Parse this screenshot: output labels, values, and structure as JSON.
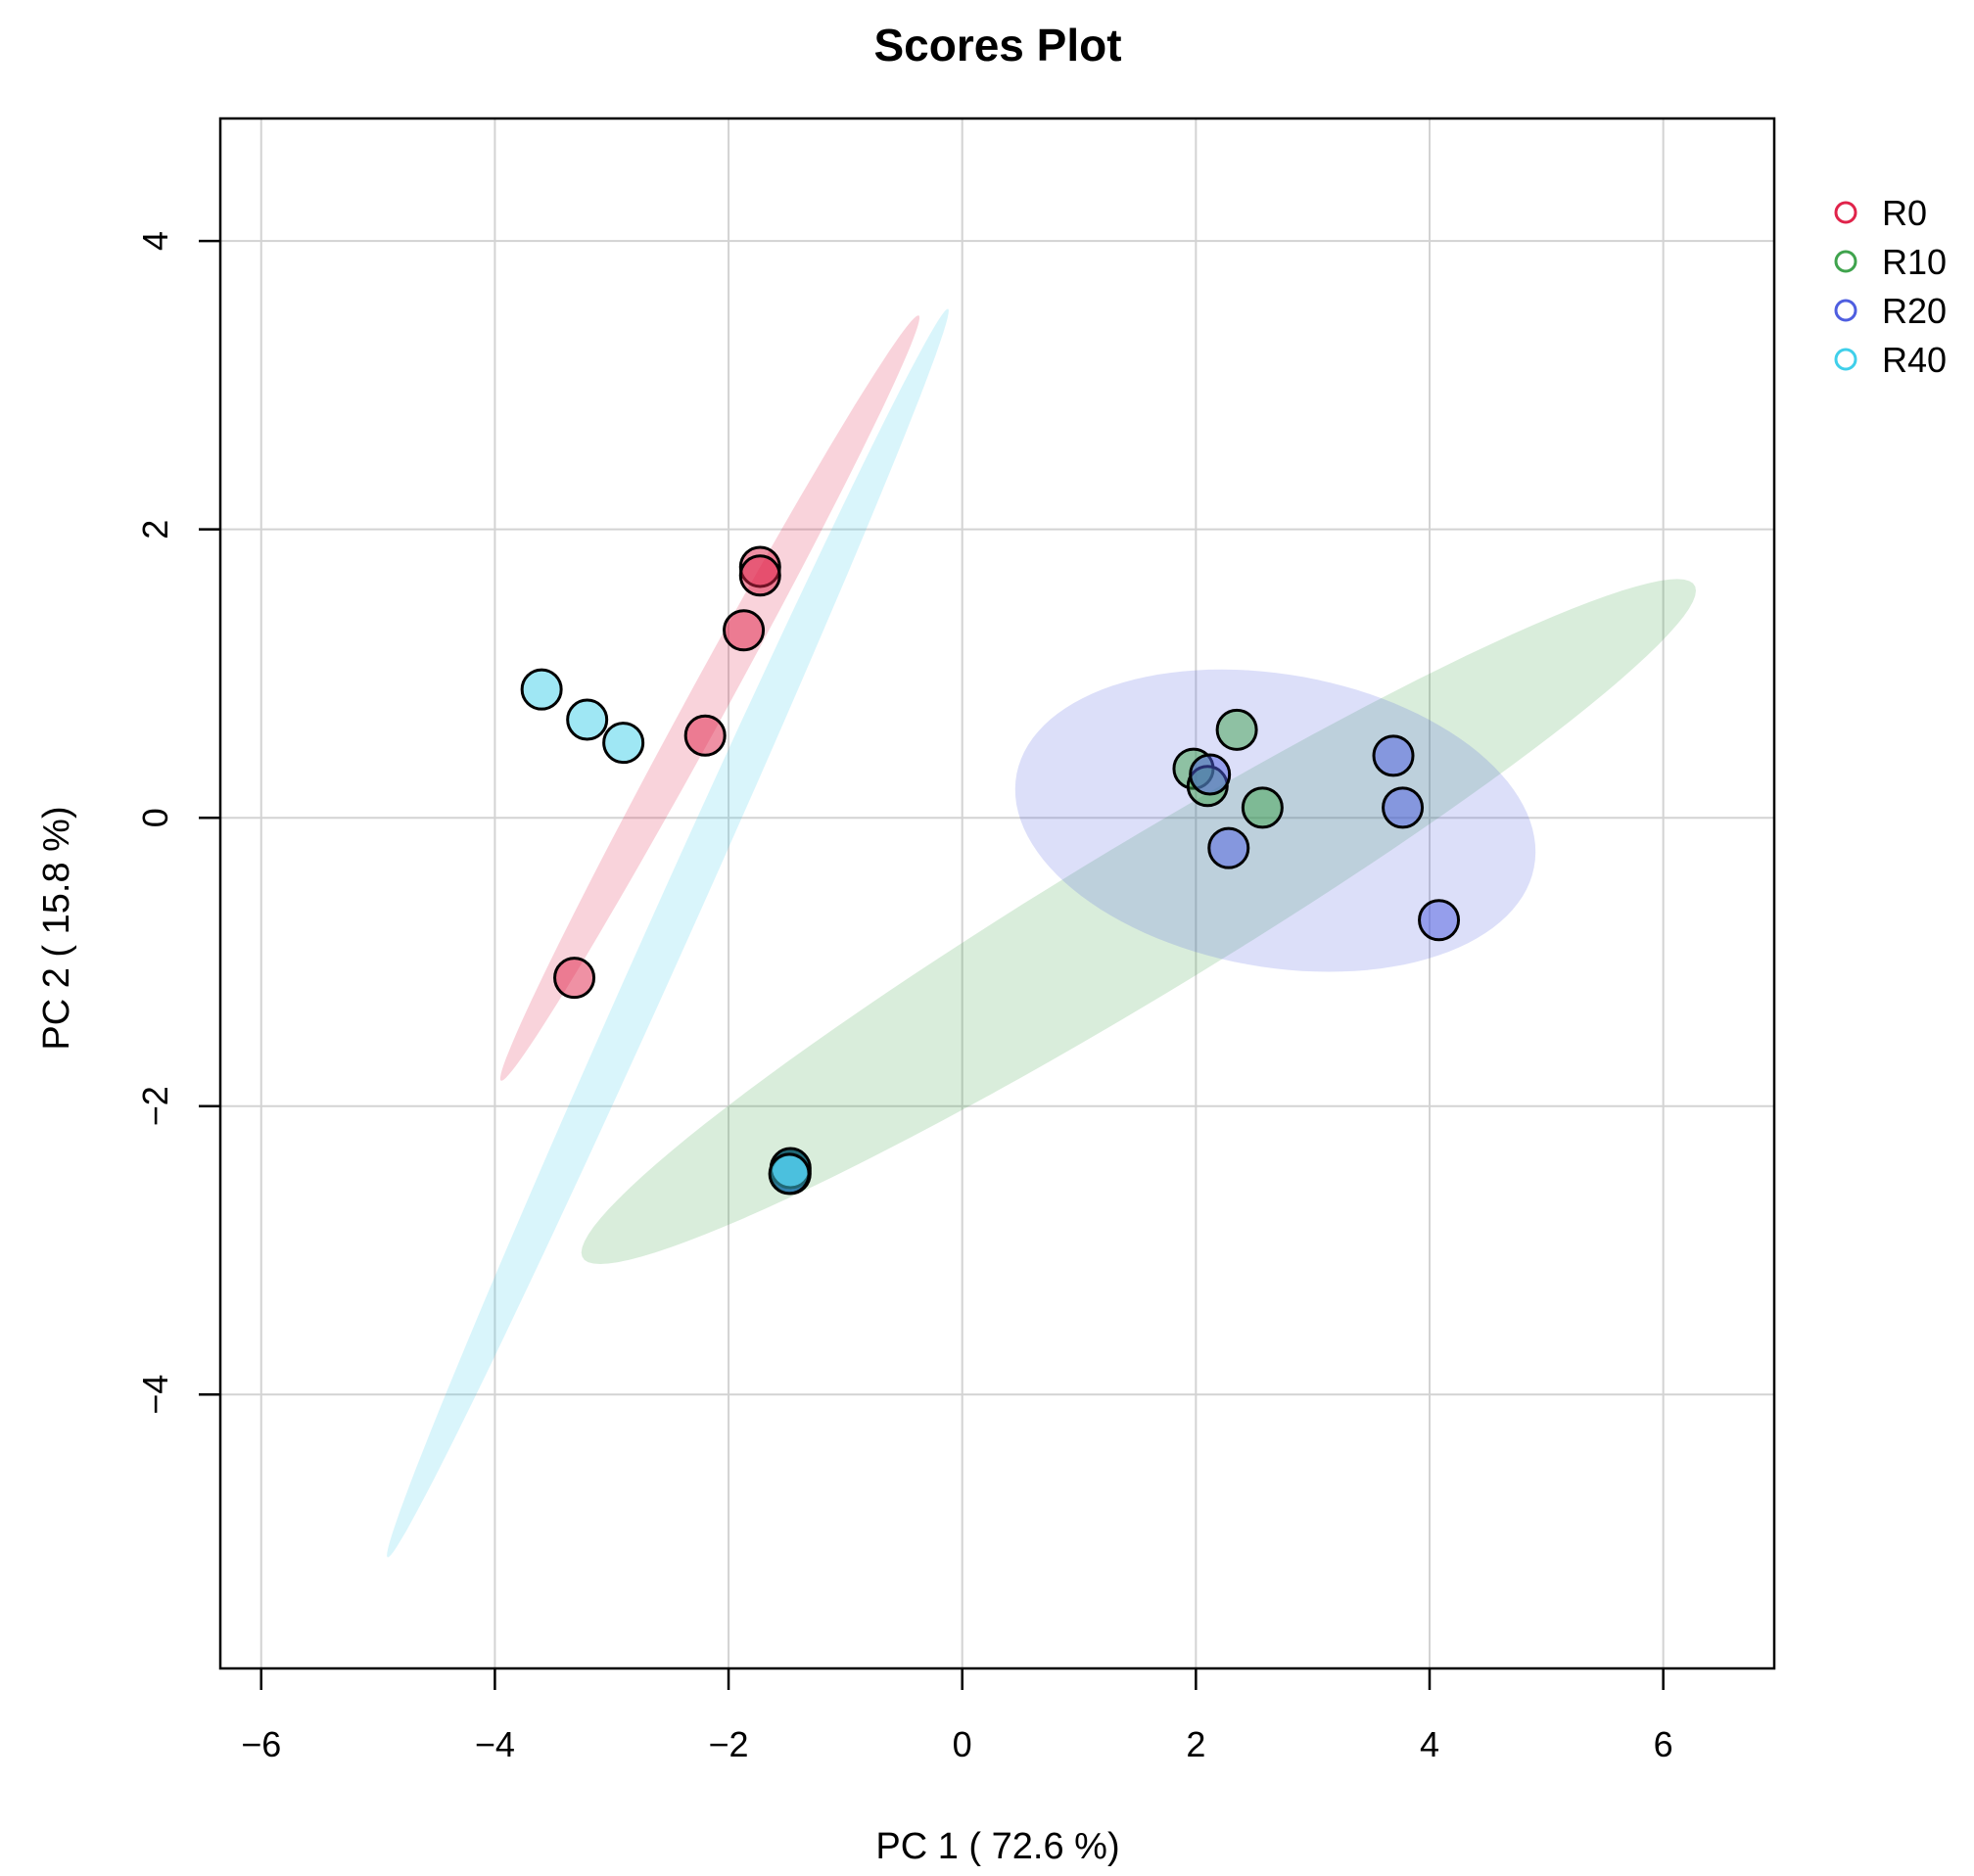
{
  "chart_data": {
    "type": "scatter",
    "title": "Scores Plot",
    "xlabel": "PC 1 ( 72.6 %)",
    "ylabel": "PC 2 ( 15.8 %)",
    "xlim": [
      -6.35,
      6.95
    ],
    "ylim": [
      -5.9,
      4.85
    ],
    "x_ticks": [
      -6,
      -4,
      -2,
      0,
      2,
      4,
      6
    ],
    "y_ticks": [
      -4,
      -2,
      0,
      2,
      4
    ],
    "x_tick_labels": [
      "−6",
      "−4",
      "−2",
      "0",
      "2",
      "4",
      "6"
    ],
    "y_tick_labels": [
      "−4",
      "−2",
      "0",
      "2",
      "4"
    ],
    "grid": true,
    "legend_position": "right-outside",
    "series": [
      {
        "name": "R0",
        "color": "#e0234a",
        "points": [
          [
            -1.73,
            1.74
          ],
          [
            -1.73,
            1.68
          ],
          [
            -1.87,
            1.3
          ],
          [
            -2.2,
            0.57
          ],
          [
            -3.32,
            -1.11
          ]
        ],
        "ellipse": {
          "center": [
            -2.16,
            0.83
          ],
          "semi_axis_major": 3.2,
          "semi_axis_minor": 0.16,
          "angle_deg": 56
        }
      },
      {
        "name": "R10",
        "color": "#3fa34d",
        "points": [
          [
            2.35,
            0.61
          ],
          [
            1.98,
            0.34
          ],
          [
            2.1,
            0.22
          ],
          [
            2.57,
            0.07
          ],
          [
            -1.47,
            -2.45
          ]
        ],
        "ellipse": {
          "center": [
            1.51,
            -0.72
          ],
          "semi_axis_major": 5.3,
          "semi_axis_minor": 0.55,
          "angle_deg": 26
        }
      },
      {
        "name": "R20",
        "color": "#4e5ee0",
        "points": [
          [
            2.12,
            0.3
          ],
          [
            3.69,
            0.43
          ],
          [
            3.77,
            0.07
          ],
          [
            2.28,
            -0.21
          ],
          [
            4.08,
            -0.71
          ],
          [
            -1.47,
            -2.47
          ]
        ],
        "ellipse": {
          "center": [
            2.68,
            -0.02
          ],
          "semi_axis_major": 2.24,
          "semi_axis_minor": 1.02,
          "angle_deg": -7
        }
      },
      {
        "name": "R40",
        "color": "#3fcfea",
        "points": [
          [
            -3.6,
            0.89
          ],
          [
            -3.21,
            0.68
          ],
          [
            -2.9,
            0.52
          ],
          [
            -1.47,
            -2.43
          ],
          [
            -1.48,
            -2.47
          ]
        ],
        "ellipse": {
          "center": [
            -2.52,
            -0.8
          ],
          "semi_axis_major": 4.95,
          "semi_axis_minor": 0.17,
          "angle_deg": 61
        }
      }
    ],
    "legend": [
      "R0",
      "R10",
      "R20",
      "R40"
    ]
  }
}
